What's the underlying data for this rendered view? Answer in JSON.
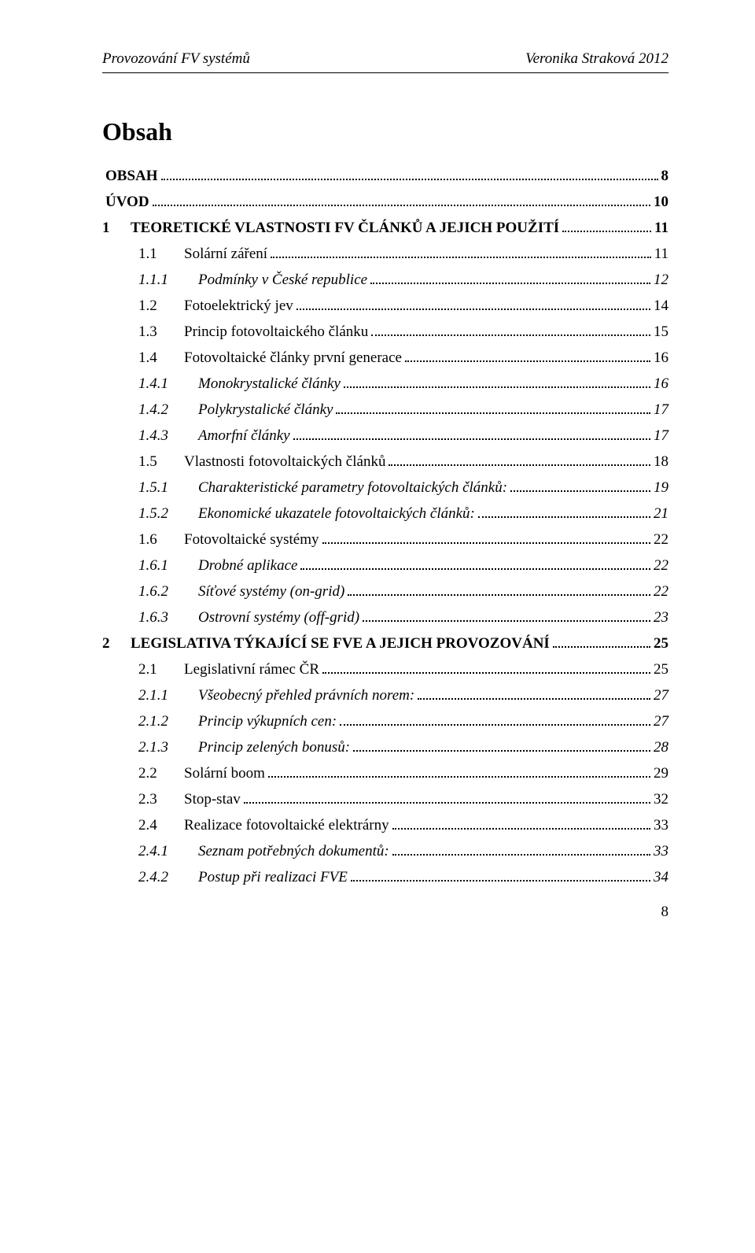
{
  "header": {
    "left": "Provozování FV systémů",
    "right": "Veronika Straková 2012"
  },
  "title": "Obsah",
  "pageNumber": "8",
  "toc": [
    {
      "level": 0,
      "num": "",
      "text": "OBSAH",
      "page": "8",
      "bold": true,
      "italic": false,
      "caps": true
    },
    {
      "level": 0,
      "num": "",
      "text": "ÚVOD",
      "page": "10",
      "bold": true,
      "italic": false,
      "caps": true
    },
    {
      "level": 1,
      "num": "1",
      "text": "TEORETICKÉ VLASTNOSTI FV ČLÁNKŮ A JEJICH POUŽITÍ",
      "page": "11",
      "bold": true,
      "italic": false,
      "caps": true
    },
    {
      "level": 2,
      "num": "1.1",
      "text": "Solární záření",
      "page": "11",
      "bold": false,
      "italic": false,
      "caps": false
    },
    {
      "level": 3,
      "num": "1.1.1",
      "text": "Podmínky v České republice",
      "page": "12",
      "bold": false,
      "italic": true,
      "caps": false
    },
    {
      "level": 2,
      "num": "1.2",
      "text": "Fotoelektrický jev",
      "page": "14",
      "bold": false,
      "italic": false,
      "caps": false
    },
    {
      "level": 2,
      "num": "1.3",
      "text": "Princip fotovoltaického článku",
      "page": "15",
      "bold": false,
      "italic": false,
      "caps": false
    },
    {
      "level": 2,
      "num": "1.4",
      "text": "Fotovoltaické články první generace",
      "page": "16",
      "bold": false,
      "italic": false,
      "caps": false
    },
    {
      "level": 3,
      "num": "1.4.1",
      "text": "Monokrystalické články",
      "page": "16",
      "bold": false,
      "italic": true,
      "caps": false
    },
    {
      "level": 3,
      "num": "1.4.2",
      "text": "Polykrystalické články",
      "page": "17",
      "bold": false,
      "italic": true,
      "caps": false
    },
    {
      "level": 3,
      "num": "1.4.3",
      "text": "Amorfní články",
      "page": "17",
      "bold": false,
      "italic": true,
      "caps": false
    },
    {
      "level": 2,
      "num": "1.5",
      "text": "Vlastnosti fotovoltaických článků",
      "page": "18",
      "bold": false,
      "italic": false,
      "caps": false
    },
    {
      "level": 3,
      "num": "1.5.1",
      "text": "Charakteristické parametry fotovoltaických článků:",
      "page": "19",
      "bold": false,
      "italic": true,
      "caps": false
    },
    {
      "level": 3,
      "num": "1.5.2",
      "text": "Ekonomické ukazatele fotovoltaických článků:",
      "page": "21",
      "bold": false,
      "italic": true,
      "caps": false
    },
    {
      "level": 2,
      "num": "1.6",
      "text": "Fotovoltaické systémy",
      "page": "22",
      "bold": false,
      "italic": false,
      "caps": false
    },
    {
      "level": 3,
      "num": "1.6.1",
      "text": "Drobné aplikace",
      "page": "22",
      "bold": false,
      "italic": true,
      "caps": false
    },
    {
      "level": 3,
      "num": "1.6.2",
      "text": "Síťové systémy (on-grid)",
      "page": "22",
      "bold": false,
      "italic": true,
      "caps": false
    },
    {
      "level": 3,
      "num": "1.6.3",
      "text": "Ostrovní systémy (off-grid)",
      "page": "23",
      "bold": false,
      "italic": true,
      "caps": false
    },
    {
      "level": 1,
      "num": "2",
      "text": "LEGISLATIVA TÝKAJÍCÍ SE FVE A JEJICH PROVOZOVÁNÍ",
      "page": "25",
      "bold": true,
      "italic": false,
      "caps": true
    },
    {
      "level": 2,
      "num": "2.1",
      "text": "Legislativní rámec ČR",
      "page": "25",
      "bold": false,
      "italic": false,
      "caps": false
    },
    {
      "level": 3,
      "num": "2.1.1",
      "text": "Všeobecný přehled právních norem:",
      "page": "27",
      "bold": false,
      "italic": true,
      "caps": false
    },
    {
      "level": 3,
      "num": "2.1.2",
      "text": "Princip výkupních cen:",
      "page": "27",
      "bold": false,
      "italic": true,
      "caps": false
    },
    {
      "level": 3,
      "num": "2.1.3",
      "text": "Princip zelených bonusů:",
      "page": "28",
      "bold": false,
      "italic": true,
      "caps": false
    },
    {
      "level": 2,
      "num": "2.2",
      "text": "Solární boom",
      "page": "29",
      "bold": false,
      "italic": false,
      "caps": false
    },
    {
      "level": 2,
      "num": "2.3",
      "text": "Stop-stav",
      "page": "32",
      "bold": false,
      "italic": false,
      "caps": false
    },
    {
      "level": 2,
      "num": "2.4",
      "text": "Realizace fotovoltaické elektrárny",
      "page": "33",
      "bold": false,
      "italic": false,
      "caps": false
    },
    {
      "level": 3,
      "num": "2.4.1",
      "text": "Seznam potřebných dokumentů:",
      "page": "33",
      "bold": false,
      "italic": true,
      "caps": false
    },
    {
      "level": 3,
      "num": "2.4.2",
      "text": "Postup při realizaci FVE",
      "page": "34",
      "bold": false,
      "italic": true,
      "caps": false
    }
  ]
}
